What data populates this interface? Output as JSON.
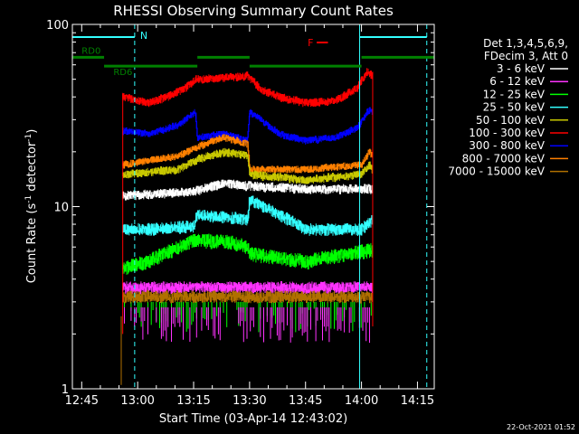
{
  "chart_data": {
    "type": "line",
    "title": "RHESSI Observing Summary Count Rates",
    "xlabel": "Start Time (03-Apr-14 12:43:02)",
    "ylabel": "Count Rate (s⁻¹ detector⁻¹)",
    "ylabel_parts": {
      "pre": "Count Rate (s",
      "sup1": "-1",
      "mid": " detector",
      "sup2": "-1",
      "post": ")"
    },
    "yscale": "log",
    "ylim": [
      1,
      100
    ],
    "xlim_minutes": [
      -0.5,
      96.5
    ],
    "x_ticks": [
      {
        "label": "12:45",
        "min": 2
      },
      {
        "label": "13:00",
        "min": 17
      },
      {
        "label": "13:15",
        "min": 32
      },
      {
        "label": "13:30",
        "min": 47
      },
      {
        "label": "13:45",
        "min": 62
      },
      {
        "label": "14:00",
        "min": 77
      },
      {
        "label": "14:15",
        "min": 92
      }
    ],
    "y_ticks": [
      {
        "label": "1",
        "value": 1
      },
      {
        "label": "10",
        "value": 10
      },
      {
        "label": "100",
        "value": 100
      }
    ],
    "legend": {
      "position": "top-right",
      "header": [
        "Det 1,3,4,5,6,9,",
        "FDecim 3, Att 0"
      ],
      "entries": [
        {
          "label": "3 - 6 keV",
          "color": "#ffffff"
        },
        {
          "label": "6 - 12 keV",
          "color": "#ff33ff"
        },
        {
          "label": "12 - 25 keV",
          "color": "#00ff00"
        },
        {
          "label": "25 - 50 keV",
          "color": "#33ffff"
        },
        {
          "label": "50 - 100 keV",
          "color": "#c8c800"
        },
        {
          "label": "100 - 300 keV",
          "color": "#ff0000"
        },
        {
          "label": "300 - 800 keV",
          "color": "#0000ff"
        },
        {
          "label": "800 - 7000 keV",
          "color": "#ff8000"
        },
        {
          "label": "7000 - 15000 keV",
          "color": "#b07000"
        }
      ]
    },
    "series": [
      {
        "name": "100 - 300 keV",
        "color": "#ff0000",
        "noise": 0.035,
        "base": 2,
        "x": [
          13,
          13.5,
          20,
          25,
          30,
          32.5,
          46.5,
          50,
          55,
          62,
          70,
          76,
          78.5,
          80
        ],
        "y": [
          40,
          40,
          37,
          40,
          45,
          50,
          52,
          44,
          40,
          37,
          38,
          45,
          55,
          52
        ]
      },
      {
        "name": "300 - 800 keV",
        "color": "#0000ff",
        "noise": 0.03,
        "base": 2,
        "x": [
          13,
          13.5,
          20,
          28,
          32.5,
          33,
          40,
          46.5,
          47,
          52,
          55,
          62,
          70,
          76,
          79,
          80
        ],
        "y": [
          26,
          26,
          25,
          28,
          33,
          24,
          25,
          23,
          33,
          28,
          25,
          23,
          24,
          27,
          34,
          33
        ]
      },
      {
        "name": "800 - 7000 keV",
        "color": "#ff8000",
        "noise": 0.03,
        "base": 2,
        "x": [
          13,
          28,
          32.5,
          40,
          46.5,
          47,
          62,
          77,
          79,
          80
        ],
        "y": [
          17,
          19,
          21,
          24,
          22,
          16,
          16,
          17,
          20,
          19
        ]
      },
      {
        "name": "50 - 100 keV",
        "color": "#c8c800",
        "noise": 0.035,
        "base": 2,
        "x": [
          13,
          28,
          32.5,
          40,
          46.5,
          47,
          62,
          77,
          79,
          80
        ],
        "y": [
          15,
          16,
          18,
          20,
          19,
          15,
          14,
          15,
          17,
          16
        ]
      },
      {
        "name": "3 - 6 keV",
        "color": "#ffffff",
        "noise": 0.04,
        "base": 2,
        "x": [
          13,
          32,
          40,
          47,
          62,
          80
        ],
        "y": [
          11.5,
          12,
          13.5,
          13,
          12.5,
          12.5
        ]
      },
      {
        "name": "25 - 50 keV",
        "color": "#33ffff",
        "noise": 0.05,
        "base": 2,
        "x": [
          13,
          20,
          32,
          33,
          46.5,
          47,
          55,
          62,
          77,
          80
        ],
        "y": [
          7.5,
          7.5,
          7.8,
          9,
          8.5,
          11,
          9,
          7.5,
          7.5,
          8.5
        ]
      },
      {
        "name": "12 - 25 keV",
        "color": "#00ff00",
        "noise": 0.06,
        "base": 2,
        "x": [
          13,
          20,
          32,
          40,
          46.5,
          47,
          62,
          80
        ],
        "y": [
          4.6,
          5,
          6.5,
          6.5,
          6,
          5.5,
          5,
          5.8
        ]
      },
      {
        "name": "6 - 12 keV",
        "color": "#ff33ff",
        "noise": 0.05,
        "base": 1,
        "x": [
          13,
          80
        ],
        "y": [
          3.6,
          3.6
        ]
      },
      {
        "name": "7000 - 15000 keV",
        "color": "#b07000",
        "noise": 0.05,
        "base": 1,
        "x": [
          13,
          80
        ],
        "y": [
          3.2,
          3.2
        ]
      }
    ],
    "ticks_low": [
      {
        "name": "12 - 25 keV",
        "color": "#00ff00",
        "from": 3.0,
        "to": 2.4
      },
      {
        "name": "6 - 12 keV",
        "color": "#ff33ff",
        "from": 2.8,
        "to": 2.1
      }
    ],
    "annotations": {
      "night_color": "#33ffff",
      "night_solid_min": [
        76.5
      ],
      "night_dashed_min": [
        16.2,
        94.5
      ],
      "night_bar": [
        {
          "from": -0.5,
          "to": 16.2,
          "label": "N"
        },
        {
          "from": 76.5,
          "to": 94.5,
          "label": ""
        }
      ],
      "flare_label": "F",
      "flare_min": [
        65,
        68
      ],
      "flare_color": "#ff0000",
      "decim_color": "#008000",
      "decim_segments": [
        {
          "from": -0.5,
          "to": 8,
          "y": 66
        },
        {
          "from": 8,
          "to": 33,
          "y": 59
        },
        {
          "from": 33,
          "to": 47,
          "y": 66
        },
        {
          "from": 47,
          "to": 77,
          "y": 59
        },
        {
          "from": 77,
          "to": 96.5,
          "y": 66
        }
      ],
      "decim_labels": [
        {
          "text": "RD0",
          "min": 2
        },
        {
          "text": "RD6",
          "min": 10.5
        }
      ]
    },
    "footer_date": "22-Oct-2021 01:52"
  }
}
